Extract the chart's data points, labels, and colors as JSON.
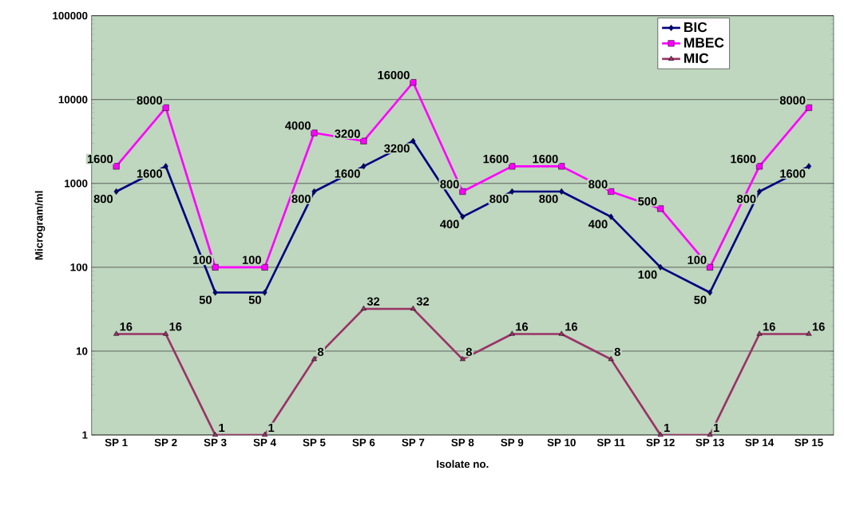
{
  "chart_data": {
    "type": "line",
    "xlabel": "Isolate no.",
    "ylabel": "Microgram/ml",
    "categories": [
      "SP 1",
      "SP 2",
      "SP 3",
      "SP 4",
      "SP 5",
      "SP 6",
      "SP 7",
      "SP 8",
      "SP 9",
      "SP 10",
      "SP 11",
      "SP 12",
      "SP 13",
      "SP 14",
      "SP 15"
    ],
    "series": [
      {
        "name": "BIC",
        "color": "#000080",
        "marker": "diamond",
        "values": [
          800,
          1600,
          50,
          50,
          800,
          1600,
          3200,
          400,
          800,
          800,
          400,
          100,
          50,
          800,
          1600
        ]
      },
      {
        "name": "MBEC",
        "color": "#ff00ff",
        "marker": "square",
        "values": [
          1600,
          8000,
          100,
          100,
          4000,
          3200,
          16000,
          800,
          1600,
          1600,
          800,
          500,
          100,
          1600,
          8000
        ]
      },
      {
        "name": "MIC",
        "color": "#993366",
        "marker": "triangle",
        "values": [
          16,
          16,
          1,
          1,
          8,
          32,
          32,
          8,
          16,
          16,
          8,
          1,
          1,
          16,
          16
        ]
      }
    ],
    "log": "y",
    "ylim": [
      1,
      100000
    ],
    "yticks": [
      1,
      10,
      100,
      1000,
      10000,
      100000
    ],
    "grid": "y",
    "legend": "top right",
    "data_labels": true
  }
}
